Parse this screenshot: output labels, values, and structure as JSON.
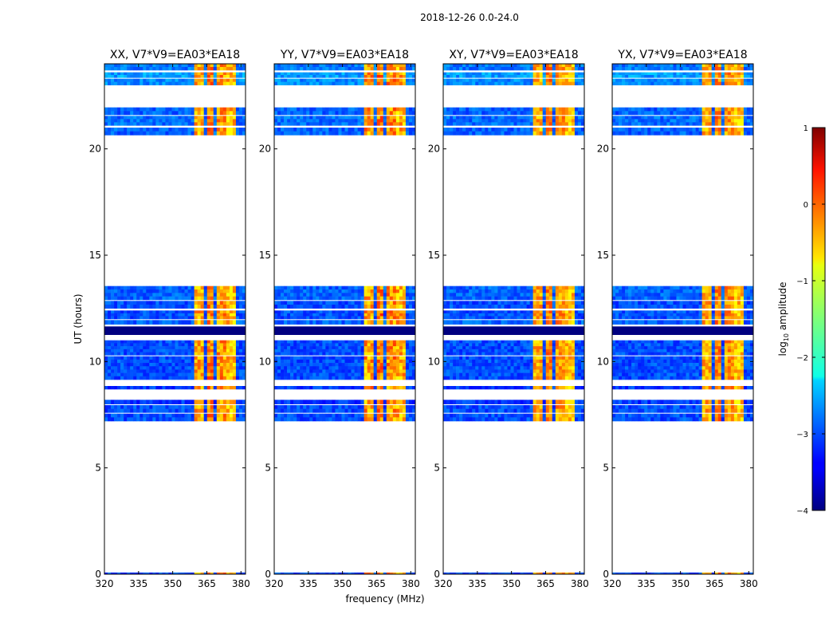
{
  "chart_data": {
    "type": "heatmap",
    "suptitle": "2018-12-26 0.0-24.0",
    "xlabel": "frequency (MHz)",
    "ylabel": "UT (hours)",
    "xlim": [
      320,
      382
    ],
    "ylim": [
      0,
      24
    ],
    "xticks": [
      320,
      335,
      350,
      365,
      380
    ],
    "yticks": [
      0,
      5,
      10,
      15,
      20
    ],
    "panels": [
      {
        "title": "XX, V7*V9=EA03*EA18",
        "strength": 1.0
      },
      {
        "title": "YY, V7*V9=EA03*EA18",
        "strength": 1.15
      },
      {
        "title": "XY, V7*V9=EA03*EA18",
        "strength": 0.9
      },
      {
        "title": "YX, V7*V9=EA03*EA18",
        "strength": 0.9
      }
    ],
    "data_blocks": [
      {
        "ut": [
          20.65,
          21.0
        ],
        "base": -2.9
      },
      {
        "ut": [
          21.1,
          21.55
        ],
        "base": -2.85
      },
      {
        "ut": [
          21.6,
          21.95
        ],
        "base": -2.9
      },
      {
        "ut": [
          23.0,
          23.3
        ],
        "base": -2.7
      },
      {
        "ut": [
          23.35,
          23.6
        ],
        "base": -2.6
      },
      {
        "ut": [
          23.7,
          24.0
        ],
        "base": -2.8
      },
      {
        "ut": [
          12.9,
          13.55
        ],
        "base": -2.9
      },
      {
        "ut": [
          12.5,
          12.85
        ],
        "base": -3.0
      },
      {
        "ut": [
          12.0,
          12.4
        ],
        "base": -3.0
      },
      {
        "ut": [
          11.75,
          11.95
        ],
        "base": -2.9
      },
      {
        "ut": [
          10.3,
          11.0
        ],
        "base": -3.0
      },
      {
        "ut": [
          9.15,
          10.25
        ],
        "base": -3.0
      },
      {
        "ut": [
          8.7,
          8.85
        ],
        "base": -3.1
      },
      {
        "ut": [
          8.0,
          8.2
        ],
        "base": -3.1
      },
      {
        "ut": [
          7.6,
          7.95
        ],
        "base": -3.0
      },
      {
        "ut": [
          7.2,
          7.55
        ],
        "base": -3.0
      },
      {
        "ut": [
          0.0,
          0.08
        ],
        "base": -3.0
      }
    ],
    "flagged_blocks": [
      {
        "ut": [
          11.25,
          11.65
        ],
        "value": -4.0
      }
    ],
    "rfi_channels_mhz": [
      {
        "range": [
          360.0,
          364.2
        ],
        "level": -0.6
      },
      {
        "range": [
          364.8,
          368.6
        ],
        "level": -0.4
      },
      {
        "range": [
          369.2,
          373.0
        ],
        "level": -0.5
      },
      {
        "range": [
          373.6,
          377.6
        ],
        "level": -0.7
      },
      {
        "range": [
          378.0,
          378.4
        ],
        "level": -1.2
      }
    ],
    "colorbar": {
      "label": "log10 amplitude",
      "label_prefix": "log",
      "label_sub": "10",
      "label_suffix": " amplitude",
      "range": [
        -4,
        1
      ],
      "ticks": [
        1,
        0,
        -1,
        -2,
        -3,
        -4
      ],
      "tick_labels": [
        "1",
        "0",
        "−1",
        "−2",
        "−3",
        "−4"
      ],
      "colormap": "jet"
    }
  }
}
